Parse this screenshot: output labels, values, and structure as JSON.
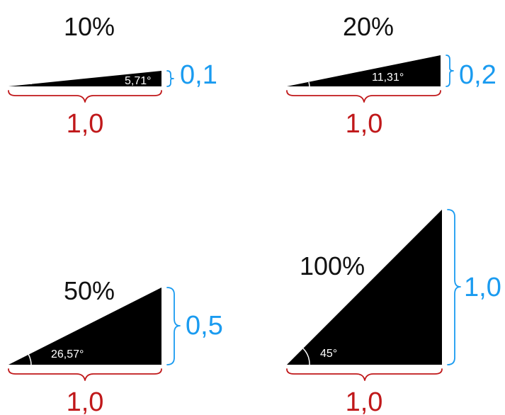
{
  "colors": {
    "triangle": "#000000",
    "run": "#c0181a",
    "rise": "#1a9bf0",
    "text": "#111111",
    "angle_text": "#ffffff"
  },
  "panels": [
    {
      "slope_label": "10%",
      "rise_label": "0,1",
      "run_label": "1,0",
      "angle_label": "5,71°",
      "slope": 0.1
    },
    {
      "slope_label": "20%",
      "rise_label": "0,2",
      "run_label": "1,0",
      "angle_label": "11,31°",
      "slope": 0.2
    },
    {
      "slope_label": "50%",
      "rise_label": "0,5",
      "run_label": "1,0",
      "angle_label": "26,57°",
      "slope": 0.5
    },
    {
      "slope_label": "100%",
      "rise_label": "1,0",
      "run_label": "1,0",
      "angle_label": "45°",
      "slope": 1.0
    }
  ]
}
